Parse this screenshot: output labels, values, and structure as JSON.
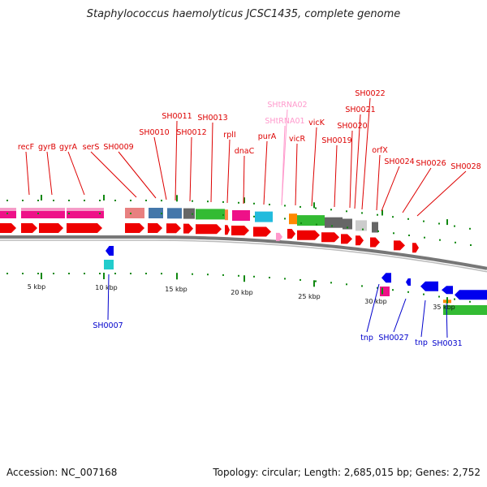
{
  "title": "Staphylococcus haemolyticus JCSC1435, complete genome",
  "footer": {
    "accession": "Accession: NC_007168",
    "summary": "Topology: circular; Length: 2,685,015 bp; Genes: 2,752"
  },
  "colors": {
    "forward_label": "#dd0000",
    "trna_label": "#ff99cc",
    "reverse_label": "#0000cc",
    "tick": "#118811",
    "backbone": "#777777"
  },
  "scale_labels": [
    "5 kbp",
    "10 kbp",
    "15 kbp",
    "20 kbp",
    "25 kbp",
    "30 kbp",
    "35 kbp"
  ],
  "forward_labels": [
    {
      "name": "recF",
      "kind": "gene"
    },
    {
      "name": "gyrB",
      "kind": "gene"
    },
    {
      "name": "gyrA",
      "kind": "gene"
    },
    {
      "name": "serS",
      "kind": "gene"
    },
    {
      "name": "SH0009",
      "kind": "gene"
    },
    {
      "name": "SH0010",
      "kind": "gene"
    },
    {
      "name": "SH0011",
      "kind": "gene"
    },
    {
      "name": "SH0012",
      "kind": "gene"
    },
    {
      "name": "SH0013",
      "kind": "gene"
    },
    {
      "name": "rplI",
      "kind": "gene"
    },
    {
      "name": "dnaC",
      "kind": "gene"
    },
    {
      "name": "purA",
      "kind": "gene"
    },
    {
      "name": "SHtRNA02",
      "kind": "trna"
    },
    {
      "name": "SHtRNA01",
      "kind": "trna"
    },
    {
      "name": "vicR",
      "kind": "gene"
    },
    {
      "name": "vicK",
      "kind": "gene"
    },
    {
      "name": "SH0019",
      "kind": "gene"
    },
    {
      "name": "SH0020",
      "kind": "gene"
    },
    {
      "name": "SH0021",
      "kind": "gene"
    },
    {
      "name": "SH0022",
      "kind": "gene"
    },
    {
      "name": "orfX",
      "kind": "gene"
    },
    {
      "name": "SH0024",
      "kind": "gene"
    },
    {
      "name": "SH0026",
      "kind": "gene"
    },
    {
      "name": "SH0028",
      "kind": "gene"
    }
  ],
  "reverse_labels": [
    "SH0007",
    "tnp",
    "SH0027",
    "tnp",
    "SH0031"
  ]
}
